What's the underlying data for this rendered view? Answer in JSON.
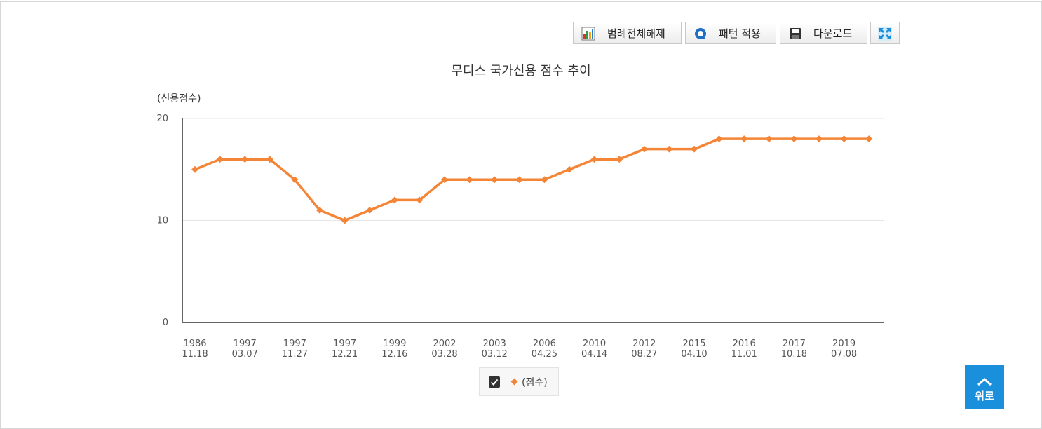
{
  "toolbar": {
    "legend_toggle_label": "범례전체해제",
    "pattern_label": "패턴 적용",
    "download_label": "다운로드"
  },
  "chart_data": {
    "type": "line",
    "title": "무디스 국가신용 점수 추이",
    "ylabel": "(신용점수)",
    "ylim": [
      0,
      20
    ],
    "y_ticks": [
      0,
      10,
      20
    ],
    "grid": true,
    "legend_position": "bottom-center",
    "x_tick_labels": [
      {
        "index": 0,
        "year": "1986",
        "date": "11.18"
      },
      {
        "index": 2,
        "year": "1997",
        "date": "03.07"
      },
      {
        "index": 4,
        "year": "1997",
        "date": "11.27"
      },
      {
        "index": 6,
        "year": "1997",
        "date": "12.21"
      },
      {
        "index": 8,
        "year": "1999",
        "date": "12.16"
      },
      {
        "index": 10,
        "year": "2002",
        "date": "03.28"
      },
      {
        "index": 12,
        "year": "2003",
        "date": "03.12"
      },
      {
        "index": 14,
        "year": "2006",
        "date": "04.25"
      },
      {
        "index": 16,
        "year": "2010",
        "date": "04.14"
      },
      {
        "index": 18,
        "year": "2012",
        "date": "08.27"
      },
      {
        "index": 20,
        "year": "2015",
        "date": "04.10"
      },
      {
        "index": 22,
        "year": "2016",
        "date": "11.01"
      },
      {
        "index": 24,
        "year": "2017",
        "date": "10.18"
      },
      {
        "index": 26,
        "year": "2019",
        "date": "07.08"
      }
    ],
    "series": [
      {
        "name": "(점수)",
        "color": "#f58536",
        "values": [
          15,
          16,
          16,
          16,
          14,
          11,
          10,
          11,
          12,
          12,
          14,
          14,
          14,
          14,
          14,
          15,
          16,
          16,
          17,
          17,
          17,
          18,
          18,
          18,
          18,
          18,
          18,
          18
        ]
      }
    ]
  },
  "legend": {
    "label": "(점수)",
    "checked": true,
    "color": "#f58536"
  },
  "scroll_top": {
    "label": "위로"
  }
}
